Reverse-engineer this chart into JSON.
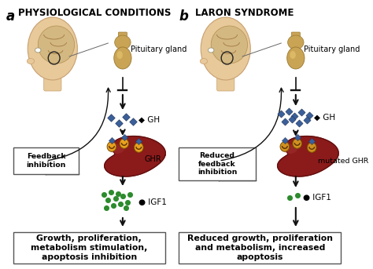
{
  "bg_color": "#ffffff",
  "panel_a_title": "PHYSIOLOGICAL CONDITIONS",
  "panel_b_title": "LARON SYNDROME",
  "label_a": "a",
  "label_b": "b",
  "pituitary_label": "Pituitary gland",
  "gh_label": "◆ GH",
  "ghr_label": "GHR",
  "igf1_label": "● IGF1",
  "mutated_ghr_label": "mutated GHR",
  "feedback_label": "Feedback\ninhibition",
  "reduced_feedback_label": "Reduced\nfeedback\ninhibition",
  "outcome_a": "Growth, proliferation,\nmetabolism stimulation,\napoptosis inhibition",
  "outcome_b": "Reduced growth, proliferation\nand metabolism, increased\napoptosis",
  "liver_color": "#8B1A1A",
  "liver_edge": "#5a0d0d",
  "gh_dot_color": "#3a5f9a",
  "igf1_dot_color": "#2d8b2d",
  "receptor_color": "#d4860a",
  "head_skin": "#e8c99a",
  "head_brain": "#c8a87a",
  "pituitary_color": "#c9a455",
  "arrow_color": "#111111",
  "box_edge_color": "#555555",
  "title_fontsize": 8.5,
  "label_fontsize": 12,
  "text_fontsize": 7.5,
  "small_fontsize": 6.5,
  "outcome_fontsize": 7.8
}
